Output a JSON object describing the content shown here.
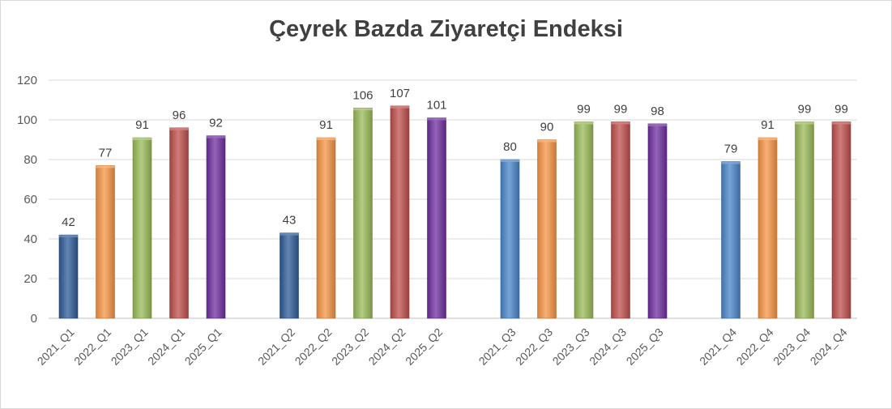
{
  "chart_data": {
    "type": "bar",
    "title": "Çeyrek Bazda Ziyaretçi Endeksi",
    "xlabel": "",
    "ylabel": "",
    "ylim": [
      0,
      120
    ],
    "yticks": [
      0,
      20,
      40,
      60,
      80,
      100,
      120
    ],
    "grid": true,
    "legend": "none",
    "groups": [
      {
        "bars": [
          {
            "label": "2021_Q1",
            "value": 42,
            "color": "#2e5c9a"
          },
          {
            "label": "2022_Q1",
            "value": 77,
            "color": "#f79646"
          },
          {
            "label": "2023_Q1",
            "value": 91,
            "color": "#9bbb59"
          },
          {
            "label": "2024_Q1",
            "value": 96,
            "color": "#c0504d"
          },
          {
            "label": "2025_Q1",
            "value": 92,
            "color": "#7030a0"
          }
        ]
      },
      {
        "bars": [
          {
            "label": "2021_Q2",
            "value": 43,
            "color": "#2e5c9a"
          },
          {
            "label": "2022_Q2",
            "value": 91,
            "color": "#f79646"
          },
          {
            "label": "2023_Q2",
            "value": 106,
            "color": "#9bbb59"
          },
          {
            "label": "2024_Q2",
            "value": 107,
            "color": "#c0504d"
          },
          {
            "label": "2025_Q2",
            "value": 101,
            "color": "#7030a0"
          }
        ]
      },
      {
        "bars": [
          {
            "label": "2021_Q3",
            "value": 80,
            "color": "#4a86c8"
          },
          {
            "label": "2022_Q3",
            "value": 90,
            "color": "#f79646"
          },
          {
            "label": "2023_Q3",
            "value": 99,
            "color": "#9bbb59"
          },
          {
            "label": "2024_Q3",
            "value": 99,
            "color": "#c0504d"
          },
          {
            "label": "2025_Q3",
            "value": 98,
            "color": "#7030a0"
          }
        ]
      },
      {
        "bars": [
          {
            "label": "2021_Q4",
            "value": 79,
            "color": "#4a86c8"
          },
          {
            "label": "2022_Q4",
            "value": 91,
            "color": "#f79646"
          },
          {
            "label": "2023_Q4",
            "value": 99,
            "color": "#9bbb59"
          },
          {
            "label": "2024_Q4",
            "value": 99,
            "color": "#c0504d"
          }
        ]
      }
    ]
  }
}
